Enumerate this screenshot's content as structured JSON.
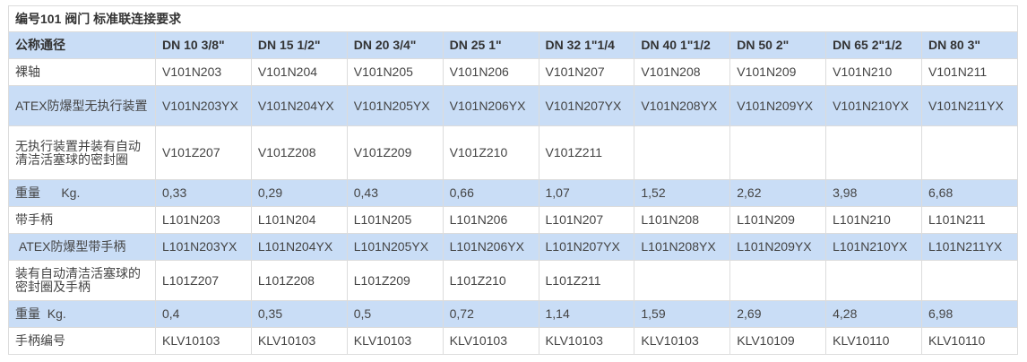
{
  "title": "编号101 阀门 标准联连接要求",
  "header": [
    "公称通径",
    "DN 10  3/8\"",
    "DN 15 1/2\"",
    "DN 20  3/4\"",
    "DN 25 1\"",
    "DN 32  1\"1/4",
    "DN 40  1\"1/2",
    "DN 50 2\"",
    "DN 65  2\"1/2",
    "DN 80 3\""
  ],
  "rows": [
    {
      "label": "裸轴",
      "cells": [
        "V101N203",
        "V101N204",
        "V101N205",
        "V101N206",
        "V101N207",
        "V101N208",
        "V101N209",
        "V101N210",
        "V101N211"
      ]
    },
    {
      "label": "ATEX防爆型无执行装置",
      "cells": [
        "V101N203YX",
        "V101N204YX",
        "V101N205YX",
        "V101N206YX",
        "V101N207YX",
        "V101N208YX",
        "V101N209YX",
        "V101N210YX",
        "V101N211YX"
      ]
    },
    {
      "label": "无执行装置并装有自动清洁活塞球的密封圈",
      "cells": [
        "V101Z207",
        "V101Z208",
        "V101Z209",
        "V101Z210",
        "V101Z211",
        "",
        "",
        "",
        ""
      ]
    },
    {
      "label": "重量      Kg.",
      "cells": [
        "0,33",
        "0,29",
        "0,43",
        "0,66",
        "1,07",
        "1,52",
        "2,62",
        "3,98",
        "6,68"
      ]
    },
    {
      "label": "带手柄",
      "cells": [
        "L101N203",
        "L101N204",
        "L101N205",
        "L101N206",
        "L101N207",
        "L101N208",
        "L101N209",
        "L101N210",
        "L101N211"
      ]
    },
    {
      "label": " ATEX防爆型带手柄",
      "cells": [
        "L101N203YX",
        "L101N204YX",
        "L101N205YX",
        "L101N206YX",
        "L101N207YX",
        "L101N208YX",
        "L101N209YX",
        "L101N210YX",
        "L101N211YX"
      ]
    },
    {
      "label": "装有自动清洁活塞球的密封圈及手柄",
      "cells": [
        "L101Z207",
        "L101Z208",
        "L101Z209",
        "L101Z210",
        "L101Z211",
        "",
        "",
        "",
        ""
      ]
    },
    {
      "label": "重量  Kg.",
      "cells": [
        "0,4",
        "0,35",
        "0,5",
        "0,72",
        "1,14",
        "1,59",
        "2,69",
        "4,28",
        "6,98"
      ]
    },
    {
      "label": "手柄编号",
      "cells": [
        "KLV10103",
        "KLV10103",
        "KLV10103",
        "KLV10103",
        "KLV10103",
        "KLV10103",
        "KLV10109",
        "KLV10110",
        "KLV10110"
      ]
    }
  ],
  "colors": {
    "header_bg": "#c9ddf6",
    "border": "#dcdcdc",
    "text": "#444444"
  }
}
